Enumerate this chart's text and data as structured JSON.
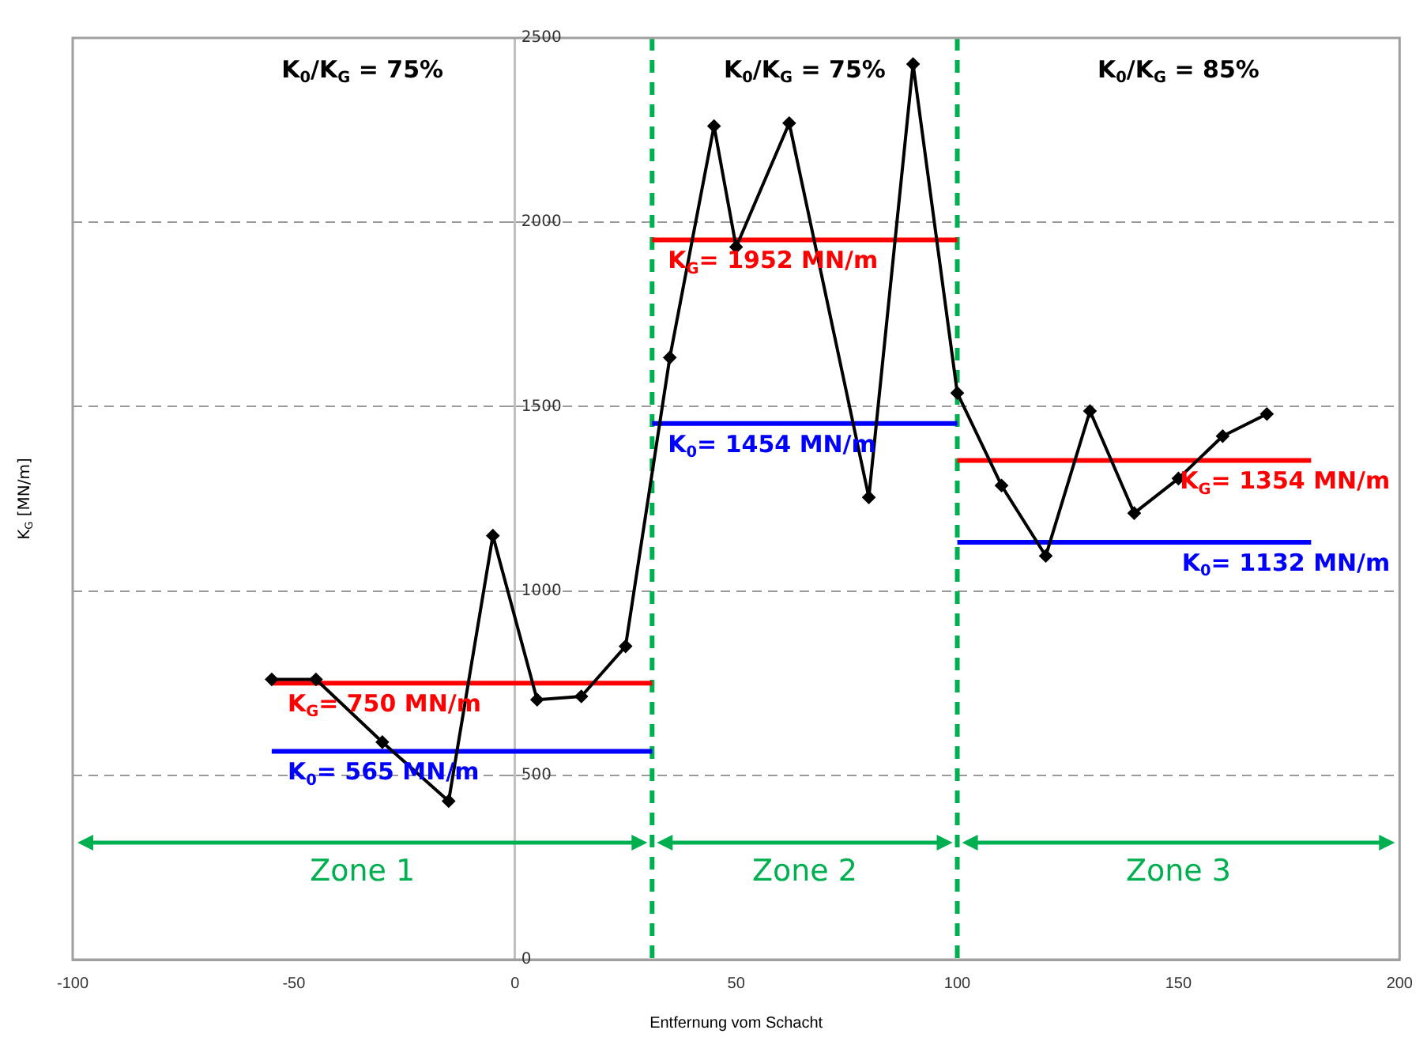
{
  "chart_data": {
    "type": "line",
    "xlabel": "Entfernung vom Schacht",
    "ylabel": "K$_{G}$ [MN/m]",
    "xlim": [
      -100,
      200
    ],
    "xticks": [
      -100,
      -50,
      0,
      50,
      100,
      150,
      200
    ],
    "ylim": [
      0,
      2500
    ],
    "yticks": [
      0,
      500,
      1000,
      1500,
      2000,
      2500
    ],
    "grid": "y",
    "legend": false,
    "marker": "diamond",
    "line_style": "solid",
    "series": [
      {
        "color": "#000000",
        "x": [
          -55,
          -45,
          -30,
          -15,
          -5,
          5,
          15,
          25,
          35,
          45,
          50,
          62,
          80,
          90,
          100,
          110,
          120,
          130,
          140,
          150,
          160,
          170
        ],
        "values": [
          760,
          760,
          590,
          430,
          1150,
          705,
          714,
          850,
          1633,
          2261,
          1933,
          2269,
          1254,
          2429,
          1537,
          1286,
          1095,
          1488,
          1211,
          1305,
          1420,
          1480
        ]
      },
      {
        "type": "line",
        "marker": "none",
        "name": "K$_{G}$= 750 MN/m",
        "color": "#ff0000",
        "x": [
          -55,
          31
        ],
        "values": [
          750,
          750
        ]
      },
      {
        "type": "line",
        "marker": "none",
        "name": "K$_{0}$= 565 MN/m",
        "color": "#0000ff",
        "x": [
          -55,
          31
        ],
        "values": [
          565,
          565
        ]
      },
      {
        "type": "line",
        "marker": "none",
        "name": "K$_{G}$= 1952 MN/m",
        "color": "#ff0000",
        "x": [
          31,
          100
        ],
        "values": [
          1952,
          1952
        ]
      },
      {
        "type": "line",
        "marker": "none",
        "name": "K$_{0}$= 1454 MN/m",
        "color": "#0000ff",
        "x": [
          31,
          100
        ],
        "values": [
          1454,
          1454
        ]
      },
      {
        "type": "line",
        "marker": "none",
        "name": "K$_{G}$= 1354 MN/m",
        "color": "#ff0000",
        "x": [
          100,
          180
        ],
        "values": [
          1354,
          1354
        ]
      },
      {
        "type": "line",
        "marker": "none",
        "name": "K$_{0}$= 1132 MN/m",
        "color": "#0000ff",
        "x": [
          100,
          180
        ],
        "values": [
          1132,
          1132
        ]
      }
    ],
    "ref_lines": [
      {
        "axis": "x",
        "value": 31,
        "color": "#00b050",
        "line_style": "dashed"
      },
      {
        "axis": "x",
        "value": 100,
        "color": "#00b050",
        "line_style": "dashed"
      }
    ],
    "annotations": [
      "K$_{0}$/K$_{G}$ = 75%",
      "K$_{0}$/K$_{G}$ = 75%",
      "K$_{0}$/K$_{G}$ = 85%",
      "Zone 1",
      "Zone 2",
      "Zone 3"
    ]
  }
}
